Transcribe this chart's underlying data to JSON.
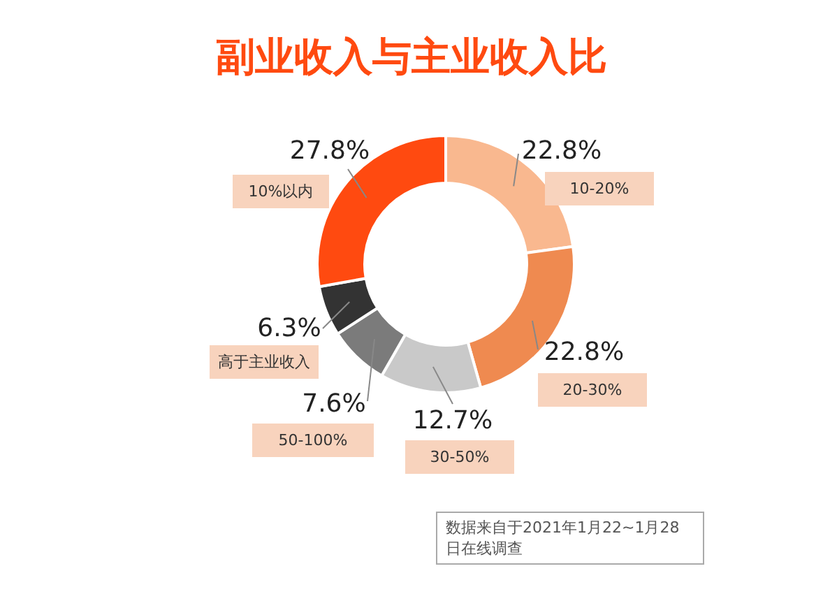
{
  "chart_data": {
    "type": "donut",
    "title": "副业收入与主业收入比",
    "categories": [
      "10-20%",
      "20-30%",
      "30-50%",
      "50-100%",
      "高于主业收入",
      "10%以内"
    ],
    "values": [
      22.8,
      22.8,
      12.7,
      7.6,
      6.3,
      27.8
    ],
    "value_labels": [
      "22.8%",
      "22.8%",
      "12.7%",
      "7.6%",
      "6.3%",
      "27.8%"
    ],
    "colors": [
      "#f9b88f",
      "#ef8a50",
      "#c9c9c9",
      "#7b7b7b",
      "#333333",
      "#ff4a10"
    ],
    "legend": false,
    "annotations": [
      "数据来自于2021年1月22~1月28日在线调查"
    ]
  }
}
